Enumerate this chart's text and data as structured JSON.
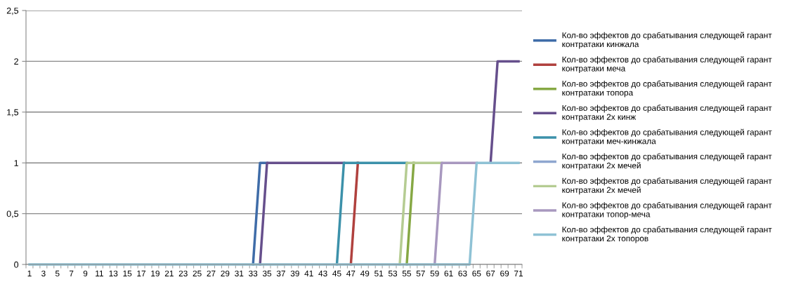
{
  "chart_data": {
    "type": "line",
    "categories": [
      "1",
      null,
      "3",
      null,
      "5",
      null,
      "7",
      null,
      "9",
      null,
      "11",
      null,
      "13",
      null,
      "15",
      null,
      "17",
      null,
      "19",
      null,
      "21",
      null,
      "23",
      null,
      "25",
      null,
      "27",
      null,
      "29",
      null,
      "31",
      null,
      "33",
      null,
      "35",
      null,
      "37",
      null,
      "39",
      null,
      "41",
      null,
      "43",
      null,
      "45",
      null,
      "47",
      null,
      "49",
      null,
      "51",
      null,
      "53",
      null,
      "55",
      null,
      "57",
      null,
      "59",
      null,
      "61",
      null,
      "63",
      null,
      "65",
      null,
      "67",
      null,
      "69",
      null,
      "71"
    ],
    "ylim": [
      0,
      2.5
    ],
    "yticks": [
      0,
      {
        "value": 0.5,
        "label": "0,5"
      },
      1,
      {
        "value": 1.5,
        "label": "1,5"
      },
      2,
      {
        "value": 2.5,
        "label": "2,5"
      }
    ],
    "grid": "y",
    "legend": "right",
    "marker": "none",
    "line_style": "solid",
    "series": [
      {
        "name": "Кол-во эффектов до срабатывания следующей гарант контратаки кинжала",
        "color": "#3f6ca8",
        "values": [
          null,
          null,
          null,
          null,
          null,
          null,
          null,
          null,
          null,
          null,
          null,
          null,
          null,
          null,
          null,
          null,
          null,
          null,
          null,
          null,
          null,
          null,
          null,
          null,
          null,
          null,
          null,
          null,
          null,
          null,
          null,
          null,
          0,
          1,
          1,
          null,
          null,
          null,
          null,
          null,
          null,
          null,
          null,
          null,
          null,
          null,
          null,
          null,
          null,
          null,
          null,
          null,
          null,
          null,
          null,
          null,
          null,
          null,
          null,
          null,
          null,
          null,
          null,
          null,
          null,
          null,
          null,
          null,
          null,
          null,
          null
        ]
      },
      {
        "name": "Кол-во эффектов до срабатывания следующей гарант контратаки меча",
        "color": "#b0413e",
        "values": [
          null,
          null,
          null,
          null,
          null,
          null,
          null,
          null,
          null,
          null,
          null,
          null,
          null,
          null,
          null,
          null,
          null,
          null,
          null,
          null,
          null,
          null,
          null,
          null,
          null,
          null,
          null,
          null,
          null,
          null,
          null,
          null,
          null,
          null,
          null,
          null,
          null,
          null,
          null,
          null,
          null,
          null,
          null,
          null,
          null,
          null,
          0,
          1,
          null,
          null,
          null,
          null,
          null,
          null,
          null,
          null,
          null,
          null,
          null,
          null,
          null,
          null,
          null,
          null,
          null,
          null,
          null,
          null,
          null,
          null,
          null
        ]
      },
      {
        "name": "Кол-во эффектов до срабатывания следующей гарант контратаки топора",
        "color": "#86a844",
        "values": [
          null,
          null,
          null,
          null,
          null,
          null,
          null,
          null,
          null,
          null,
          null,
          null,
          null,
          null,
          null,
          null,
          null,
          null,
          null,
          null,
          null,
          null,
          null,
          null,
          null,
          null,
          null,
          null,
          null,
          null,
          null,
          null,
          null,
          null,
          null,
          null,
          null,
          null,
          null,
          null,
          null,
          null,
          null,
          null,
          null,
          null,
          null,
          null,
          null,
          null,
          null,
          null,
          null,
          null,
          0,
          1,
          null,
          null,
          null,
          null,
          null,
          null,
          null,
          null,
          null,
          null,
          null,
          null,
          null,
          null,
          null
        ]
      },
      {
        "name": "Кол-во эффектов до срабатывания следующей гарант контратаки 2х кинж",
        "color": "#664f8c",
        "values": [
          null,
          null,
          null,
          null,
          null,
          null,
          null,
          null,
          null,
          null,
          null,
          null,
          null,
          null,
          null,
          null,
          null,
          null,
          null,
          null,
          null,
          null,
          null,
          null,
          null,
          null,
          null,
          null,
          null,
          null,
          null,
          null,
          null,
          0,
          1,
          1,
          1,
          1,
          1,
          1,
          1,
          1,
          1,
          1,
          1,
          1,
          null,
          null,
          null,
          null,
          null,
          null,
          null,
          null,
          null,
          null,
          null,
          null,
          null,
          null,
          null,
          null,
          null,
          null,
          null,
          null,
          1,
          2,
          2,
          2,
          2
        ]
      },
      {
        "name": "Кол-во эффектов до срабатывания следующей гарант контратаки меч-кинжала",
        "color": "#3c91aa",
        "values": [
          null,
          null,
          null,
          null,
          null,
          null,
          null,
          null,
          null,
          null,
          null,
          null,
          null,
          null,
          null,
          null,
          null,
          null,
          null,
          null,
          null,
          null,
          null,
          null,
          null,
          null,
          null,
          null,
          null,
          null,
          null,
          null,
          null,
          null,
          null,
          null,
          null,
          null,
          null,
          null,
          null,
          null,
          null,
          null,
          0,
          1,
          1,
          1,
          1,
          1,
          1,
          1,
          1,
          1,
          1,
          null,
          null,
          null,
          null,
          null,
          null,
          null,
          null,
          null,
          null,
          null,
          null,
          null,
          null,
          null,
          null
        ]
      },
      {
        "name": "Кол-во эффектов до срабатывания следующей гарант контратаки 2х мечей",
        "color": "#8ea6cf",
        "values": [
          null,
          null,
          null,
          null,
          null,
          null,
          null,
          null,
          null,
          null,
          null,
          null,
          null,
          null,
          null,
          null,
          null,
          null,
          null,
          null,
          null,
          null,
          null,
          null,
          null,
          null,
          null,
          null,
          null,
          null,
          null,
          null,
          null,
          null,
          null,
          null,
          null,
          null,
          null,
          null,
          null,
          null,
          null,
          null,
          null,
          null,
          null,
          null,
          null,
          null,
          null,
          null,
          null,
          null,
          null,
          null,
          null,
          null,
          null,
          null,
          null,
          null,
          null,
          null,
          null,
          null,
          null,
          null,
          null,
          null,
          null
        ]
      },
      {
        "name": "Кол-во эффектов до срабатывания следующей гарант контратаки 2х мечей",
        "color": "#b5cc92",
        "values": [
          null,
          null,
          null,
          null,
          null,
          null,
          null,
          null,
          null,
          null,
          null,
          null,
          null,
          null,
          null,
          null,
          null,
          null,
          null,
          null,
          null,
          null,
          null,
          null,
          null,
          null,
          null,
          null,
          null,
          null,
          null,
          null,
          null,
          null,
          null,
          null,
          null,
          null,
          null,
          null,
          null,
          null,
          null,
          null,
          null,
          null,
          null,
          null,
          null,
          null,
          null,
          null,
          null,
          0,
          1,
          1,
          1,
          1,
          1,
          1,
          null,
          null,
          null,
          null,
          null,
          null,
          null,
          null,
          null,
          null,
          null
        ]
      },
      {
        "name": "Кол-во эффектов до срабатывания следующей гарант контратаки топор-меча",
        "color": "#a898bf",
        "values": [
          null,
          null,
          null,
          null,
          null,
          null,
          null,
          null,
          null,
          null,
          null,
          null,
          null,
          null,
          null,
          null,
          null,
          null,
          null,
          null,
          null,
          null,
          null,
          null,
          null,
          null,
          null,
          null,
          null,
          null,
          null,
          null,
          null,
          null,
          null,
          null,
          null,
          null,
          null,
          null,
          null,
          null,
          null,
          null,
          null,
          null,
          null,
          null,
          null,
          null,
          null,
          null,
          null,
          null,
          null,
          null,
          null,
          null,
          0,
          1,
          1,
          1,
          1,
          1,
          1,
          null,
          null,
          null,
          null,
          null,
          null
        ]
      },
      {
        "name": "Кол-во эффектов до срабатывания следующей гарант контратаки 2х топоров",
        "color": "#8fc2d5",
        "values": [
          0,
          0,
          0,
          0,
          0,
          0,
          0,
          0,
          0,
          0,
          0,
          0,
          0,
          0,
          0,
          0,
          0,
          0,
          0,
          0,
          0,
          0,
          0,
          0,
          0,
          0,
          0,
          0,
          0,
          0,
          0,
          0,
          0,
          0,
          0,
          0,
          0,
          0,
          0,
          0,
          0,
          0,
          0,
          0,
          0,
          0,
          0,
          0,
          0,
          0,
          0,
          0,
          0,
          0,
          0,
          0,
          0,
          0,
          0,
          0,
          0,
          0,
          0,
          0,
          1,
          1,
          1,
          1,
          1,
          1,
          1
        ]
      }
    ]
  }
}
